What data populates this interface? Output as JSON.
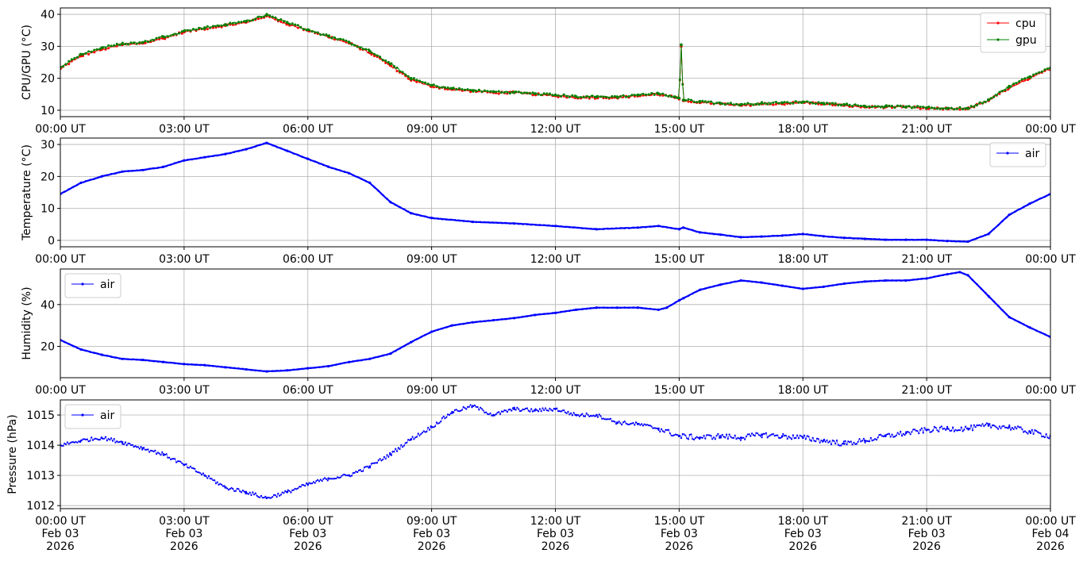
{
  "colors": {
    "cpu": "#ff0000",
    "gpu": "#008000",
    "air": "#0000ff",
    "grid": "#b0b0b0"
  },
  "x_ticks": [
    {
      "hour": 0,
      "time": "00:00 UT",
      "date": "Feb 03",
      "year": "2026"
    },
    {
      "hour": 3,
      "time": "03:00 UT",
      "date": "Feb 03",
      "year": "2026"
    },
    {
      "hour": 6,
      "time": "06:00 UT",
      "date": "Feb 03",
      "year": "2026"
    },
    {
      "hour": 9,
      "time": "09:00 UT",
      "date": "Feb 03",
      "year": "2026"
    },
    {
      "hour": 12,
      "time": "12:00 UT",
      "date": "Feb 03",
      "year": "2026"
    },
    {
      "hour": 15,
      "time": "15:00 UT",
      "date": "Feb 03",
      "year": "2026"
    },
    {
      "hour": 18,
      "time": "18:00 UT",
      "date": "Feb 03",
      "year": "2026"
    },
    {
      "hour": 21,
      "time": "21:00 UT",
      "date": "Feb 03",
      "year": "2026"
    },
    {
      "hour": 24,
      "time": "00:00 UT",
      "date": "Feb 04",
      "year": "2026"
    }
  ],
  "chart_data": [
    {
      "type": "line",
      "ylabel": "CPU/GPU (°C)",
      "ylim": [
        8,
        42
      ],
      "yticks": [
        10,
        20,
        30,
        40
      ],
      "xlim_hours": [
        0,
        24
      ],
      "grid": true,
      "legend": "top-right",
      "series": [
        {
          "name": "cpu",
          "color": "#ff0000",
          "x": [
            0,
            0.5,
            1,
            1.5,
            2,
            2.5,
            3,
            3.5,
            4,
            4.5,
            5,
            5.5,
            6,
            6.5,
            7,
            7.5,
            8,
            8.5,
            9,
            9.5,
            10,
            10.5,
            11,
            11.5,
            12,
            12.5,
            13,
            13.5,
            14,
            14.5,
            14.9,
            15.0,
            15.05,
            15.1,
            15.5,
            16,
            16.5,
            17,
            17.5,
            18,
            18.5,
            19,
            19.5,
            20,
            20.5,
            21,
            21.5,
            22,
            22.5,
            23,
            23.5,
            24
          ],
          "y": [
            23,
            27,
            29,
            30.5,
            31,
            32.5,
            34.5,
            35.5,
            36.5,
            37.5,
            39.5,
            37,
            35,
            33,
            31,
            28,
            24,
            19.5,
            17.5,
            16.5,
            16,
            15.5,
            15.5,
            15,
            14.5,
            14,
            14,
            14,
            14.5,
            15,
            14,
            13.5,
            30,
            13,
            12.5,
            12,
            11.5,
            12,
            12,
            12.5,
            12,
            11.5,
            11,
            11,
            11,
            10.5,
            10.5,
            10.5,
            13,
            17,
            20,
            23
          ]
        },
        {
          "name": "gpu",
          "color": "#008000",
          "x": [
            0,
            0.5,
            1,
            1.5,
            2,
            2.5,
            3,
            3.5,
            4,
            4.5,
            5,
            5.5,
            6,
            6.5,
            7,
            7.5,
            8,
            8.5,
            9,
            9.5,
            10,
            10.5,
            11,
            11.5,
            12,
            12.5,
            13,
            13.5,
            14,
            14.5,
            14.9,
            15.0,
            15.05,
            15.1,
            15.5,
            16,
            16.5,
            17,
            17.5,
            18,
            18.5,
            19,
            19.5,
            20,
            20.5,
            21,
            21.5,
            22,
            22.5,
            23,
            23.5,
            24
          ],
          "y": [
            23.5,
            27.5,
            29.5,
            30.8,
            31.2,
            33,
            34.8,
            35.8,
            36.8,
            37.8,
            39.8,
            37.5,
            35.2,
            33.2,
            31.2,
            28.5,
            24.5,
            20,
            17.8,
            16.8,
            16.2,
            15.8,
            15.6,
            15.2,
            14.8,
            14.3,
            14.2,
            14.2,
            14.8,
            15.2,
            14.2,
            13.8,
            30.5,
            13.2,
            12.8,
            12.2,
            11.8,
            12.2,
            12.3,
            12.6,
            12.2,
            11.8,
            11.3,
            11.2,
            11.1,
            10.8,
            10.6,
            10.6,
            13.3,
            17.5,
            20.5,
            23.2
          ]
        }
      ]
    },
    {
      "type": "line",
      "ylabel": "Temperature (°C)",
      "ylim": [
        -2,
        32
      ],
      "yticks": [
        0,
        10,
        20,
        30
      ],
      "xlim_hours": [
        0,
        24
      ],
      "grid": true,
      "legend": "top-right",
      "series": [
        {
          "name": "air",
          "color": "#0000ff",
          "x": [
            0,
            0.5,
            1,
            1.5,
            2,
            2.5,
            3,
            3.5,
            4,
            4.5,
            5,
            5.5,
            6,
            6.5,
            7,
            7.5,
            8,
            8.5,
            9,
            10,
            11,
            12,
            13,
            14,
            14.5,
            15,
            15.1,
            15.5,
            16,
            16.5,
            17,
            17.5,
            18,
            18.5,
            19,
            19.5,
            20,
            20.5,
            21,
            21.5,
            22,
            22.5,
            23,
            23.5,
            24
          ],
          "y": [
            14.5,
            18,
            20,
            21.5,
            22,
            23,
            25,
            26,
            27,
            28.5,
            30.5,
            28,
            25.5,
            23,
            21,
            18,
            12,
            8.5,
            7,
            5.8,
            5.3,
            4.5,
            3.5,
            4,
            4.5,
            3.5,
            4,
            2.5,
            1.8,
            1,
            1.2,
            1.5,
            2,
            1.3,
            0.8,
            0.5,
            0.2,
            0.2,
            0.2,
            -0.2,
            -0.4,
            2,
            8,
            11.5,
            14.5
          ]
        }
      ]
    },
    {
      "type": "line",
      "ylabel": "Humidity (%)",
      "ylim": [
        5,
        57
      ],
      "yticks": [
        20,
        40
      ],
      "xlim_hours": [
        0,
        24
      ],
      "grid": true,
      "legend": "top-left",
      "series": [
        {
          "name": "air",
          "color": "#0000ff",
          "x": [
            0,
            0.5,
            1,
            1.5,
            2,
            2.5,
            3,
            3.5,
            4,
            4.5,
            5,
            5.5,
            6,
            6.5,
            7,
            7.5,
            8,
            8.5,
            9,
            9.5,
            10,
            10.5,
            11,
            11.5,
            12,
            12.5,
            13,
            13.5,
            14,
            14.5,
            14.7,
            15,
            15.1,
            15.5,
            16,
            16.5,
            17,
            17.5,
            18,
            18.5,
            19,
            19.5,
            20,
            20.5,
            21,
            21.5,
            21.8,
            22,
            22.5,
            23,
            23.5,
            24
          ],
          "y": [
            23,
            18.5,
            16,
            14,
            13.5,
            12.5,
            11.5,
            11,
            10,
            9,
            8,
            8.5,
            9.5,
            10.5,
            12.5,
            14,
            16.5,
            22,
            27,
            30,
            31.5,
            32.5,
            33.5,
            35,
            36,
            37.5,
            38.5,
            38.5,
            38.5,
            37.5,
            38.5,
            42,
            43,
            47,
            49.5,
            51.5,
            50.5,
            49,
            47.5,
            48.5,
            50,
            51,
            51.5,
            51.5,
            52.5,
            54.5,
            55.5,
            54,
            44,
            34,
            29,
            24.5
          ]
        }
      ]
    },
    {
      "type": "scatter",
      "ylabel": "Pressure (hPa)",
      "ylim": [
        1011.9,
        1015.5
      ],
      "yticks": [
        1012,
        1013,
        1014,
        1015
      ],
      "xlim_hours": [
        0,
        24
      ],
      "grid": true,
      "legend": "top-left",
      "series": [
        {
          "name": "air",
          "color": "#0000ff",
          "x": [
            0,
            0.5,
            1,
            1.5,
            2,
            2.5,
            3,
            3.5,
            4,
            4.5,
            5,
            5.5,
            6,
            6.5,
            7,
            7.5,
            8,
            8.5,
            9,
            9.5,
            10,
            10.5,
            11,
            11.5,
            12,
            12.5,
            13,
            13.5,
            14,
            14.5,
            15,
            15.5,
            16,
            16.5,
            17,
            17.5,
            18,
            18.5,
            19,
            19.5,
            20,
            20.5,
            21,
            21.5,
            22,
            22.5,
            23,
            23.5,
            24
          ],
          "y": [
            1014.0,
            1014.15,
            1014.25,
            1014.1,
            1013.9,
            1013.7,
            1013.35,
            1013.0,
            1012.6,
            1012.45,
            1012.25,
            1012.45,
            1012.7,
            1012.9,
            1013.0,
            1013.3,
            1013.7,
            1014.2,
            1014.6,
            1015.1,
            1015.3,
            1015.0,
            1015.2,
            1015.15,
            1015.2,
            1015.0,
            1015.0,
            1014.75,
            1014.7,
            1014.55,
            1014.3,
            1014.25,
            1014.3,
            1014.25,
            1014.35,
            1014.3,
            1014.25,
            1014.15,
            1014.05,
            1014.15,
            1014.3,
            1014.4,
            1014.5,
            1014.55,
            1014.55,
            1014.65,
            1014.6,
            1014.45,
            1014.3
          ]
        }
      ]
    }
  ]
}
